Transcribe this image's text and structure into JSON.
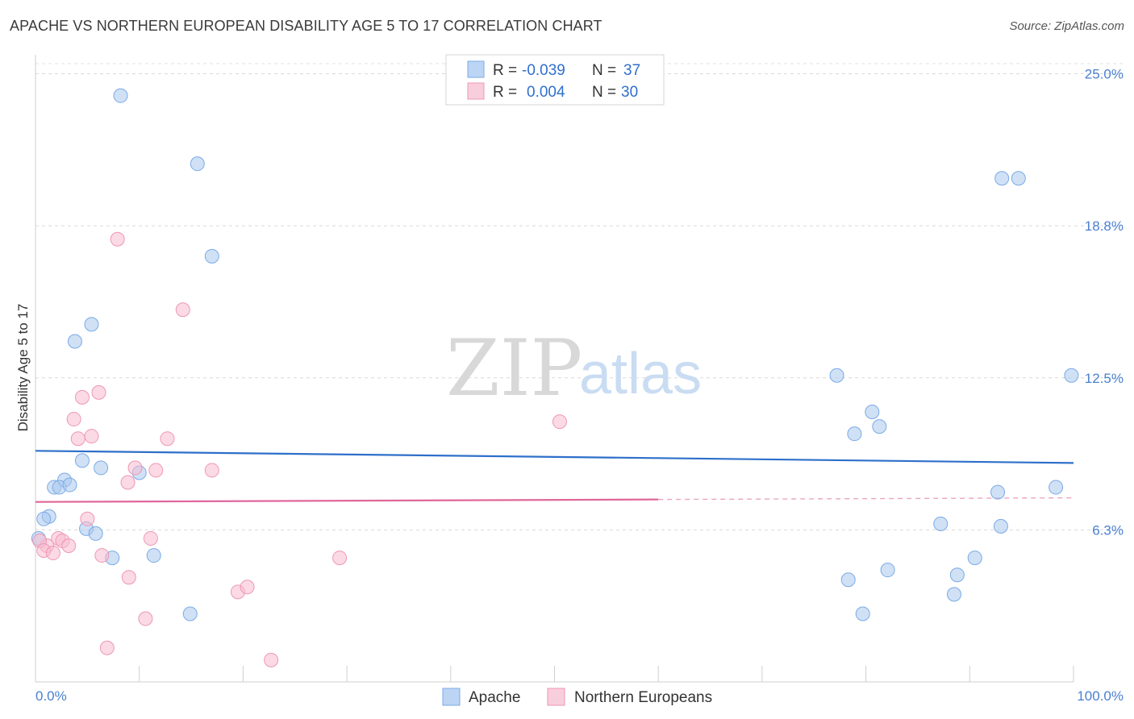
{
  "header": {
    "title": "APACHE VS NORTHERN EUROPEAN DISABILITY AGE 5 TO 17 CORRELATION CHART",
    "source": "Source: ZipAtlas.com"
  },
  "watermark": {
    "zip": "ZIP",
    "atlas": "atlas"
  },
  "chart_data": {
    "type": "scatter",
    "title": "APACHE VS NORTHERN EUROPEAN DISABILITY AGE 5 TO 17 CORRELATION CHART",
    "xlabel": "",
    "ylabel": "Disability Age 5 to 17",
    "xlim": [
      0,
      100
    ],
    "ylim": [
      0,
      25
    ],
    "x_tick_labels": {
      "min": "0.0%",
      "max": "100.0%"
    },
    "y_ticks": [
      {
        "value": 6.25,
        "label": "6.3%"
      },
      {
        "value": 12.5,
        "label": "12.5%"
      },
      {
        "value": 18.75,
        "label": "18.8%"
      },
      {
        "value": 25.0,
        "label": "25.0%"
      }
    ],
    "legend": {
      "items": [
        {
          "r_label": "R = ",
          "r_value": "-0.039",
          "n_label": "N = ",
          "n_value": "37",
          "color": "#a9c8ef"
        },
        {
          "r_label": "R = ",
          "r_value": "0.004",
          "n_label": "N = ",
          "n_value": "30",
          "color": "#f7bcd0"
        }
      ]
    },
    "series": [
      {
        "name": "Apache",
        "color": "#a9c8ef",
        "stroke": "#7aaae6",
        "trend_color": "#2e6fca",
        "trend": {
          "x0": 0,
          "y0": 9.5,
          "x1": 100,
          "y1": 9.0
        },
        "points": [
          [
            8.2,
            24.1
          ],
          [
            15.6,
            21.3
          ],
          [
            17.0,
            17.5
          ],
          [
            5.4,
            14.7
          ],
          [
            3.8,
            14.0
          ],
          [
            4.5,
            9.1
          ],
          [
            6.3,
            8.8
          ],
          [
            10.0,
            8.6
          ],
          [
            2.8,
            8.3
          ],
          [
            1.8,
            8.0
          ],
          [
            2.3,
            8.0
          ],
          [
            3.3,
            8.1
          ],
          [
            1.3,
            6.8
          ],
          [
            0.8,
            6.7
          ],
          [
            4.9,
            6.3
          ],
          [
            5.8,
            6.1
          ],
          [
            0.3,
            5.9
          ],
          [
            7.4,
            5.1
          ],
          [
            11.4,
            5.2
          ],
          [
            14.9,
            2.8
          ],
          [
            81.3,
            10.5
          ],
          [
            77.2,
            12.6
          ],
          [
            78.9,
            10.2
          ],
          [
            80.6,
            11.1
          ],
          [
            93.1,
            20.7
          ],
          [
            94.7,
            20.7
          ],
          [
            99.8,
            12.6
          ],
          [
            98.3,
            8.0
          ],
          [
            92.7,
            7.8
          ],
          [
            87.2,
            6.5
          ],
          [
            93.0,
            6.4
          ],
          [
            90.5,
            5.1
          ],
          [
            88.8,
            4.4
          ],
          [
            82.1,
            4.6
          ],
          [
            78.3,
            4.2
          ],
          [
            88.5,
            3.6
          ],
          [
            79.7,
            2.8
          ]
        ]
      },
      {
        "name": "Northern Europeans",
        "color": "#f7bcd0",
        "stroke": "#ee97b3",
        "trend_color": "#e0679a",
        "trend": {
          "x0": 0,
          "y0": 7.4,
          "x1": 60,
          "y1": 7.5,
          "dash_to": 100
        },
        "points": [
          [
            7.9,
            18.2
          ],
          [
            14.2,
            15.3
          ],
          [
            6.1,
            11.9
          ],
          [
            4.5,
            11.7
          ],
          [
            3.7,
            10.8
          ],
          [
            4.1,
            10.0
          ],
          [
            5.4,
            10.1
          ],
          [
            12.7,
            10.0
          ],
          [
            9.6,
            8.8
          ],
          [
            11.6,
            8.7
          ],
          [
            17.0,
            8.7
          ],
          [
            8.9,
            8.2
          ],
          [
            5.0,
            6.7
          ],
          [
            2.2,
            5.9
          ],
          [
            1.1,
            5.6
          ],
          [
            2.6,
            5.8
          ],
          [
            3.2,
            5.6
          ],
          [
            0.4,
            5.8
          ],
          [
            0.8,
            5.4
          ],
          [
            1.7,
            5.3
          ],
          [
            6.4,
            5.2
          ],
          [
            11.1,
            5.9
          ],
          [
            29.3,
            5.1
          ],
          [
            9.0,
            4.3
          ],
          [
            19.5,
            3.7
          ],
          [
            20.4,
            3.9
          ],
          [
            10.6,
            2.6
          ],
          [
            6.9,
            1.4
          ],
          [
            22.7,
            0.9
          ],
          [
            50.5,
            10.7
          ]
        ]
      }
    ]
  }
}
